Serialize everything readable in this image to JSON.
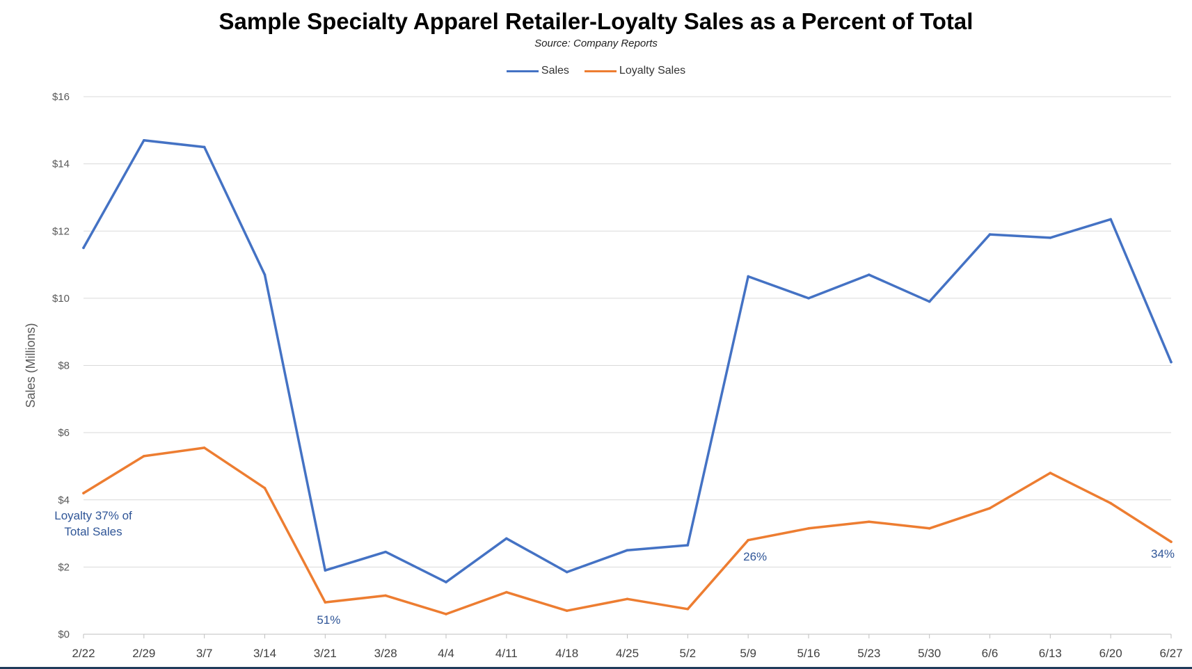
{
  "chart_data": {
    "type": "line",
    "title": "Sample Specialty Apparel Retailer-Loyalty Sales as a Percent of Total",
    "subtitle": "Source: Company Reports",
    "xlabel": "",
    "ylabel": "Sales (Millions)",
    "ylim": [
      0,
      16
    ],
    "yticks": [
      "$0",
      "$2",
      "$4",
      "$6",
      "$8",
      "$10",
      "$12",
      "$14",
      "$16"
    ],
    "grid": true,
    "legend_position": "top",
    "categories": [
      "2/22",
      "2/29",
      "3/7",
      "3/14",
      "3/21",
      "3/28",
      "4/4",
      "4/11",
      "4/18",
      "4/25",
      "5/2",
      "5/9",
      "5/16",
      "5/23",
      "5/30",
      "6/6",
      "6/13",
      "6/20",
      "6/27"
    ],
    "series": [
      {
        "name": "Sales",
        "color": "#4472C4",
        "values": [
          11.5,
          14.7,
          14.5,
          10.7,
          1.9,
          2.45,
          1.55,
          2.85,
          1.85,
          2.5,
          2.65,
          10.65,
          10.0,
          10.7,
          9.9,
          11.9,
          11.8,
          12.35,
          8.1
        ]
      },
      {
        "name": "Loyalty Sales",
        "color": "#ED7D31",
        "values": [
          4.2,
          5.3,
          5.55,
          4.35,
          0.95,
          1.15,
          0.6,
          1.25,
          0.7,
          1.05,
          0.75,
          2.8,
          3.15,
          3.35,
          3.15,
          3.75,
          4.8,
          3.9,
          2.75
        ]
      }
    ],
    "annotations": [
      {
        "text": "Loyalty 37% of\nTotal Sales",
        "category": "2/22"
      },
      {
        "text": "51%",
        "category": "3/21"
      },
      {
        "text": "26%",
        "category": "5/9"
      },
      {
        "text": "34%",
        "category": "6/27"
      }
    ]
  }
}
